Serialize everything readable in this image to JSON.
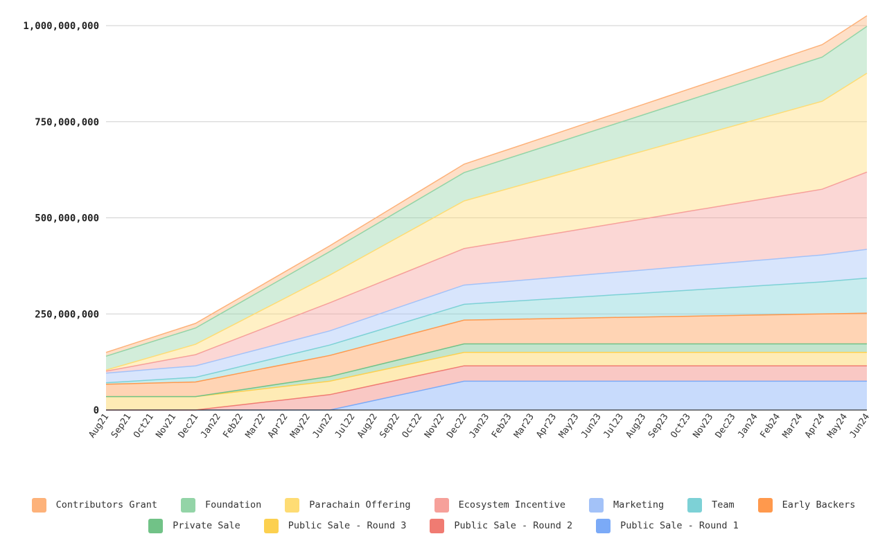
{
  "chart_data": {
    "type": "area",
    "stacked": true,
    "title": "",
    "xlabel": "",
    "ylabel": "",
    "ylim": [
      0,
      1000000000
    ],
    "yticks": [
      0,
      250000000,
      500000000,
      750000000,
      1000000000
    ],
    "ytick_labels": [
      "0",
      "250,000,000",
      "500,000,000",
      "750,000,000",
      "1,000,000,000"
    ],
    "grid": true,
    "legend_position": "bottom",
    "categories": [
      "Aug21",
      "Sep21",
      "Oct21",
      "Nov21",
      "Dec21",
      "Jan22",
      "Feb22",
      "Mar22",
      "Apr22",
      "May22",
      "Jun22",
      "Jul22",
      "Aug22",
      "Sep22",
      "Oct22",
      "Nov22",
      "Dec22",
      "Jan23",
      "Feb23",
      "Mar23",
      "Apr23",
      "May23",
      "Jun23",
      "Jul23",
      "Aug23",
      "Sep23",
      "Oct23",
      "Nov23",
      "Dec23",
      "Jan24",
      "Feb24",
      "Mar24",
      "Apr24",
      "May24",
      "Jun24"
    ],
    "series": [
      {
        "name": "Public Sale - Round 1",
        "color": "#7baaf7",
        "values": [
          0,
          0,
          0,
          0,
          0,
          0,
          0,
          0,
          0,
          0,
          0,
          12500000,
          25000000,
          37500000,
          50000000,
          62500000,
          75000000,
          75000000,
          75000000,
          75000000,
          75000000,
          75000000,
          75000000,
          75000000,
          75000000,
          75000000,
          75000000,
          75000000,
          75000000,
          75000000,
          75000000,
          75000000,
          75000000,
          75000000,
          75000000
        ]
      },
      {
        "name": "Public Sale - Round 2",
        "color": "#f07b72",
        "values": [
          0,
          0,
          0,
          0,
          0,
          6670000,
          13330000,
          20000000,
          26670000,
          33330000,
          40000000,
          40000000,
          40000000,
          40000000,
          40000000,
          40000000,
          40000000,
          40000000,
          40000000,
          40000000,
          40000000,
          40000000,
          40000000,
          40000000,
          40000000,
          40000000,
          40000000,
          40000000,
          40000000,
          40000000,
          40000000,
          40000000,
          40000000,
          40000000,
          40000000
        ]
      },
      {
        "name": "Public Sale - Round 3",
        "color": "#fcd04f",
        "values": [
          35000000,
          35000000,
          35000000,
          35000000,
          35000000,
          35000000,
          35000000,
          35000000,
          35000000,
          35000000,
          35000000,
          35000000,
          35000000,
          35000000,
          35000000,
          35000000,
          35000000,
          35000000,
          35000000,
          35000000,
          35000000,
          35000000,
          35000000,
          35000000,
          35000000,
          35000000,
          35000000,
          35000000,
          35000000,
          35000000,
          35000000,
          35000000,
          35000000,
          35000000,
          35000000
        ]
      },
      {
        "name": "Private Sale",
        "color": "#71c287",
        "values": [
          0,
          0,
          0,
          0,
          0,
          2000000,
          4000000,
          6000000,
          8000000,
          10000000,
          12000000,
          13670000,
          15330000,
          17000000,
          18670000,
          20330000,
          22000000,
          22000000,
          22000000,
          22000000,
          22000000,
          22000000,
          22000000,
          22000000,
          22000000,
          22000000,
          22000000,
          22000000,
          22000000,
          22000000,
          22000000,
          22000000,
          22000000,
          22000000,
          22000000
        ]
      },
      {
        "name": "Early Backers",
        "color": "#ff994d",
        "values": [
          32000000,
          33500000,
          35000000,
          36500000,
          38000000,
          40830000,
          43670000,
          46500000,
          49330000,
          52170000,
          55000000,
          56170000,
          57330000,
          58500000,
          59670000,
          60830000,
          62000000,
          63000000,
          64000000,
          65000000,
          66000000,
          67000000,
          68000000,
          69000000,
          70000000,
          71000000,
          72000000,
          73000000,
          74000000,
          75000000,
          76000000,
          77000000,
          78000000,
          79000000,
          80000000
        ]
      },
      {
        "name": "Team",
        "color": "#7dd1d6",
        "values": [
          4000000,
          6000000,
          8000000,
          10000000,
          12000000,
          14500000,
          17000000,
          19500000,
          22000000,
          24500000,
          27000000,
          29330000,
          31670000,
          34000000,
          36330000,
          38670000,
          41000000,
          43650000,
          46300000,
          48950000,
          51600000,
          54250000,
          56900000,
          59550000,
          62200000,
          64850000,
          67500000,
          70150000,
          72800000,
          75450000,
          78100000,
          80750000,
          83400000,
          87200000,
          91000000
        ]
      },
      {
        "name": "Marketing",
        "color": "#a3c2f8",
        "values": [
          25000000,
          26250000,
          27500000,
          28750000,
          30000000,
          31170000,
          32330000,
          33500000,
          34670000,
          35830000,
          37000000,
          39170000,
          41330000,
          43500000,
          45670000,
          47830000,
          50000000,
          51250000,
          52500000,
          53750000,
          55000000,
          56250000,
          57500000,
          58750000,
          60000000,
          61250000,
          62500000,
          63750000,
          65000000,
          66250000,
          67500000,
          68750000,
          70000000,
          72500000,
          75000000
        ]
      },
      {
        "name": "Ecosystem Incentive",
        "color": "#f6a09a",
        "values": [
          5000000,
          11000000,
          17000000,
          23000000,
          29000000,
          36330000,
          43670000,
          51000000,
          58330000,
          65670000,
          73000000,
          76670000,
          80330000,
          84000000,
          87670000,
          91330000,
          95000000,
          99750000,
          104500000,
          109250000,
          114000000,
          118750000,
          123500000,
          128250000,
          133000000,
          137750000,
          142500000,
          147250000,
          152000000,
          156750000,
          161500000,
          166250000,
          171000000,
          186000000,
          201000000
        ]
      },
      {
        "name": "Parachain Offering",
        "color": "#fedc74",
        "values": [
          3000000,
          9000000,
          15000000,
          21000000,
          27000000,
          34500000,
          42000000,
          49500000,
          57000000,
          64500000,
          72000000,
          80670000,
          89330000,
          98000000,
          106670000,
          115330000,
          124000000,
          130550000,
          137100000,
          143650000,
          150200000,
          156750000,
          163300000,
          169850000,
          176400000,
          182950000,
          189500000,
          196050000,
          202600000,
          209150000,
          215700000,
          222250000,
          228800000,
          242900000,
          257000000
        ]
      },
      {
        "name": "Foundation",
        "color": "#93d4a7",
        "values": [
          36000000,
          37600000,
          39200000,
          40800000,
          42400000,
          45530000,
          48670000,
          51800000,
          54930000,
          58070000,
          61200000,
          63270000,
          65330000,
          67400000,
          69470000,
          71530000,
          73600000,
          76180000,
          78750000,
          81330000,
          83900000,
          86480000,
          89050000,
          91630000,
          94200000,
          96780000,
          99350000,
          101930000,
          104500000,
          107080000,
          109650000,
          112230000,
          114800000,
          118400000,
          122000000
        ]
      },
      {
        "name": "Contributors Grant",
        "color": "#fdb27a",
        "values": [
          10000000,
          10500000,
          11000000,
          11500000,
          12000000,
          12500000,
          13000000,
          13500000,
          14000000,
          14500000,
          15000000,
          16170000,
          17330000,
          18500000,
          19670000,
          20830000,
          22000000,
          22650000,
          23300000,
          23950000,
          24600000,
          25250000,
          25900000,
          26550000,
          27200000,
          27850000,
          28500000,
          29150000,
          29800000,
          30450000,
          31100000,
          31750000,
          32400000,
          30000000,
          27600000
        ]
      }
    ]
  },
  "legend": {
    "row1": [
      {
        "label": "Contributors Grant",
        "color": "#fdb27a"
      },
      {
        "label": "Foundation",
        "color": "#93d4a7"
      },
      {
        "label": "Parachain Offering",
        "color": "#fedc74"
      },
      {
        "label": "Ecosystem Incentive",
        "color": "#f6a09a"
      },
      {
        "label": "Marketing",
        "color": "#a3c2f8"
      },
      {
        "label": "Team",
        "color": "#7dd1d6"
      },
      {
        "label": "Early Backers",
        "color": "#ff994d"
      }
    ],
    "row2": [
      {
        "label": "Private Sale",
        "color": "#71c287"
      },
      {
        "label": "Public Sale - Round 3",
        "color": "#fcd04f"
      },
      {
        "label": "Public Sale - Round 2",
        "color": "#f07b72"
      },
      {
        "label": "Public Sale - Round 1",
        "color": "#7baaf7"
      }
    ]
  }
}
